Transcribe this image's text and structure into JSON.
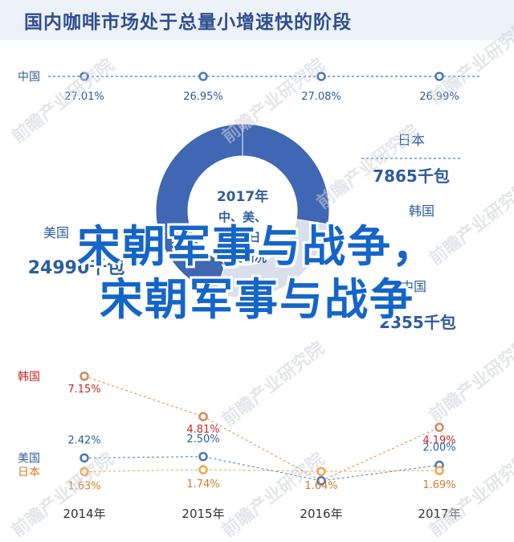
{
  "title": "国内咖啡市场处于总量小增速快的阶段",
  "overlay_text": [
    "宋朝军事与战争，",
    "宋朝军事与战争"
  ],
  "watermark": "前瞻产业研究院",
  "colors": {
    "china_line": "#4a78b8",
    "growth_line": "#d08a5a",
    "usa_line": "#4a78b8",
    "japan_line": "#f0a64a",
    "donut_dark": "#3f67b3",
    "donut_light": "#d9e0ec",
    "text_blue": "#2e5d9f",
    "text_orange": "#d07c2a",
    "text_red": "#c62828",
    "label_gray": "#555555"
  },
  "chart_data": [
    {
      "type": "line",
      "series": [
        {
          "name": "中国",
          "values": [
            27.01,
            26.95,
            27.08,
            26.99
          ],
          "labels": [
            "27.01%",
            "26.95%",
            "27.08%",
            "26.99%"
          ]
        }
      ]
    },
    {
      "type": "pie",
      "center_label": [
        "2017年",
        "中、美、",
        "韩、日",
        "消费情况"
      ],
      "slices": [
        {
          "name": "美国",
          "value": 24990,
          "label": "24990千包"
        },
        {
          "name": "日本",
          "value": 7865,
          "label": "7865千包"
        },
        {
          "name": "韩国",
          "value": null,
          "label": ""
        },
        {
          "name": "中国",
          "value": 2355,
          "label": "2355千包"
        }
      ]
    },
    {
      "type": "line",
      "categories": [
        "2014年",
        "2015年",
        "2016年",
        "2017年"
      ],
      "series": [
        {
          "name": "韩国",
          "values": [
            7.15,
            4.81,
            1.1,
            4.19
          ],
          "labels": [
            "7.15%",
            "4.81%",
            "",
            "4.19%"
          ]
        },
        {
          "name": "美国",
          "values": [
            2.42,
            2.5,
            1.1,
            2.0
          ],
          "labels": [
            "2.42%",
            "2.50%",
            "",
            "2.00%"
          ]
        },
        {
          "name": "日本",
          "values": [
            1.63,
            1.74,
            1.64,
            1.69
          ],
          "labels": [
            "1.63%",
            "1.74%",
            "1.64%",
            "1.69%"
          ]
        }
      ]
    }
  ]
}
